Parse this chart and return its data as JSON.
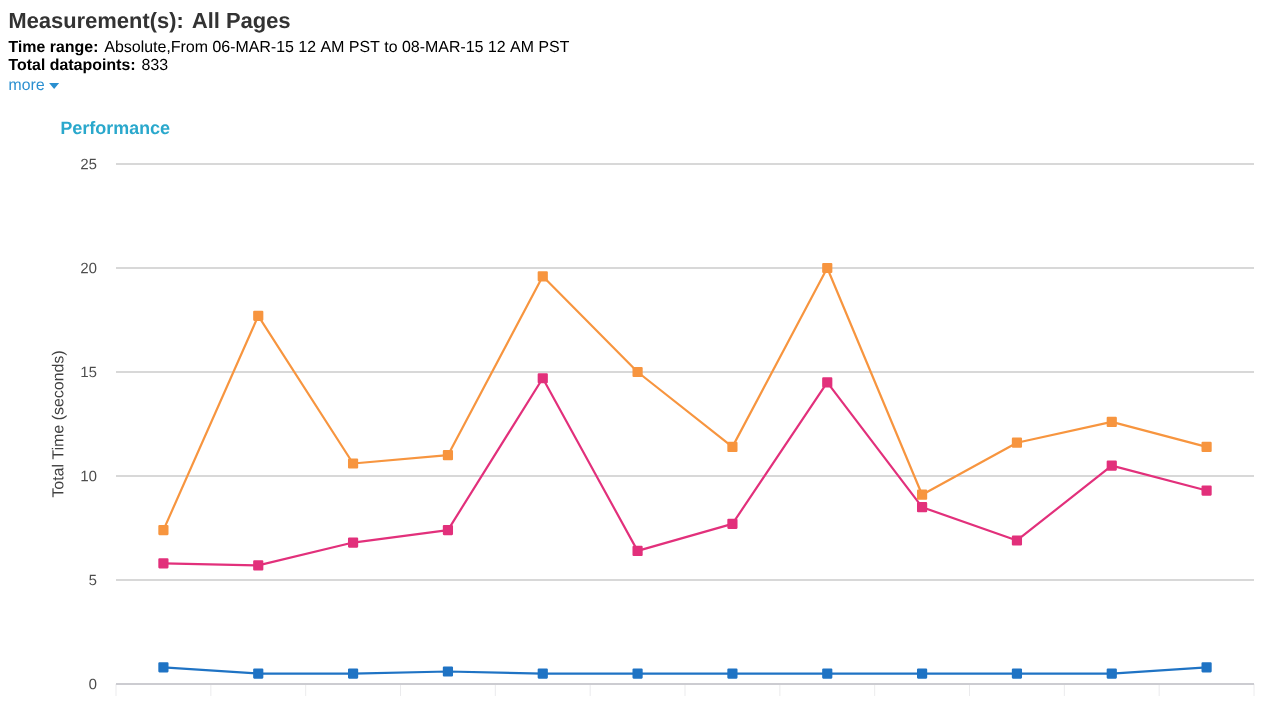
{
  "chart_data": {
    "type": "line",
    "title": "Measurement(s): All Pages",
    "subtitle": "**Time range:** Absolute,From 06-MAR-15 12 AM PST to 08-MAR-15 12 AM PST",
    "annotations": [
      "**Total datapoints:** 833",
      "more",
      "Performance"
    ],
    "ylabel": "Total Time (seconds)",
    "categories": [
      null,
      null,
      null,
      null,
      null,
      null,
      null,
      null,
      null,
      null,
      null,
      null
    ],
    "series": [
      {
        "color": "#f7953f",
        "values": [
          7.4,
          17.7,
          10.6,
          11.0,
          19.6,
          15.0,
          11.4,
          20.0,
          9.1,
          11.6,
          12.6,
          11.4
        ]
      },
      {
        "color": "#e2307b",
        "values": [
          5.8,
          5.7,
          6.8,
          7.4,
          14.7,
          6.4,
          7.7,
          14.5,
          8.5,
          6.9,
          10.5,
          9.3
        ]
      },
      {
        "color": "#1f73c4",
        "values": [
          0.8,
          0.5,
          0.5,
          0.6,
          0.5,
          0.5,
          0.5,
          0.5,
          0.5,
          0.5,
          0.5,
          0.8
        ]
      }
    ],
    "ylim": [
      0,
      25
    ],
    "yticks": [
      0,
      5,
      10,
      15,
      20,
      25
    ],
    "grid": "y",
    "marker": "square",
    "line_style": "solid"
  }
}
